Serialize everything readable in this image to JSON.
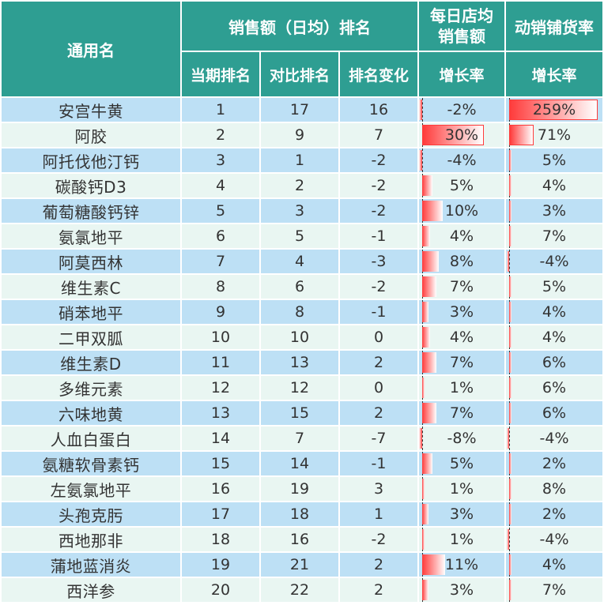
{
  "headers": {
    "name": "通用名",
    "sales_rank_group": "销售额（日均）排名",
    "store_sales_group_line1": "每日店均",
    "store_sales_group_line2": "销售额",
    "distribution_group": "动销铺货率",
    "current_rank": "当期排名",
    "compare_rank": "对比排名",
    "rank_change": "排名变化",
    "store_growth": "增长率",
    "dist_growth": "增长率"
  },
  "colors": {
    "header_bg": "#2e9e92",
    "row_odd": "#bde0f5",
    "row_even": "#e9f6f2",
    "bar": "#ff3b3b"
  },
  "rows": [
    {
      "name": "安宫牛黄",
      "current": "1",
      "compare": "17",
      "change": "16",
      "store": "-2%",
      "store_v": -0.02,
      "dist": "259%",
      "dist_v": 2.59
    },
    {
      "name": "阿胶",
      "current": "2",
      "compare": "9",
      "change": "7",
      "store": "30%",
      "store_v": 0.3,
      "dist": "71%",
      "dist_v": 0.71
    },
    {
      "name": "阿托伐他汀钙",
      "current": "3",
      "compare": "1",
      "change": "-2",
      "store": "-4%",
      "store_v": -0.04,
      "dist": "5%",
      "dist_v": 0.05
    },
    {
      "name": "碳酸钙D3",
      "current": "4",
      "compare": "2",
      "change": "-2",
      "store": "5%",
      "store_v": 0.05,
      "dist": "4%",
      "dist_v": 0.04
    },
    {
      "name": "葡萄糖酸钙锌",
      "current": "5",
      "compare": "3",
      "change": "-2",
      "store": "10%",
      "store_v": 0.1,
      "dist": "3%",
      "dist_v": 0.03
    },
    {
      "name": "氨氯地平",
      "current": "6",
      "compare": "5",
      "change": "-1",
      "store": "4%",
      "store_v": 0.04,
      "dist": "7%",
      "dist_v": 0.07
    },
    {
      "name": "阿莫西林",
      "current": "7",
      "compare": "4",
      "change": "-3",
      "store": "8%",
      "store_v": 0.08,
      "dist": "-4%",
      "dist_v": -0.04
    },
    {
      "name": "维生素C",
      "current": "8",
      "compare": "6",
      "change": "-2",
      "store": "7%",
      "store_v": 0.07,
      "dist": "5%",
      "dist_v": 0.05
    },
    {
      "name": "硝苯地平",
      "current": "9",
      "compare": "8",
      "change": "-1",
      "store": "3%",
      "store_v": 0.03,
      "dist": "4%",
      "dist_v": 0.04
    },
    {
      "name": "二甲双胍",
      "current": "10",
      "compare": "10",
      "change": "0",
      "store": "4%",
      "store_v": 0.04,
      "dist": "4%",
      "dist_v": 0.04
    },
    {
      "name": "维生素D",
      "current": "11",
      "compare": "13",
      "change": "2",
      "store": "7%",
      "store_v": 0.07,
      "dist": "6%",
      "dist_v": 0.06
    },
    {
      "name": "多维元素",
      "current": "12",
      "compare": "12",
      "change": "0",
      "store": "1%",
      "store_v": 0.01,
      "dist": "6%",
      "dist_v": 0.06
    },
    {
      "name": "六味地黄",
      "current": "13",
      "compare": "15",
      "change": "2",
      "store": "7%",
      "store_v": 0.07,
      "dist": "6%",
      "dist_v": 0.06
    },
    {
      "name": "人血白蛋白",
      "current": "14",
      "compare": "7",
      "change": "-7",
      "store": "-8%",
      "store_v": -0.08,
      "dist": "-4%",
      "dist_v": -0.04
    },
    {
      "name": "氨糖软骨素钙",
      "current": "15",
      "compare": "14",
      "change": "-1",
      "store": "5%",
      "store_v": 0.05,
      "dist": "2%",
      "dist_v": 0.02
    },
    {
      "name": "左氨氯地平",
      "current": "16",
      "compare": "19",
      "change": "3",
      "store": "1%",
      "store_v": 0.01,
      "dist": "8%",
      "dist_v": 0.08
    },
    {
      "name": "头孢克肟",
      "current": "17",
      "compare": "18",
      "change": "1",
      "store": "3%",
      "store_v": 0.03,
      "dist": "2%",
      "dist_v": 0.02
    },
    {
      "name": "西地那非",
      "current": "18",
      "compare": "16",
      "change": "-2",
      "store": "1%",
      "store_v": 0.01,
      "dist": "-4%",
      "dist_v": -0.04
    },
    {
      "name": "蒲地蓝消炎",
      "current": "19",
      "compare": "21",
      "change": "2",
      "store": "11%",
      "store_v": 0.11,
      "dist": "4%",
      "dist_v": 0.04
    },
    {
      "name": "西洋参",
      "current": "20",
      "compare": "22",
      "change": "2",
      "store": "3%",
      "store_v": 0.03,
      "dist": "7%",
      "dist_v": 0.07
    }
  ]
}
